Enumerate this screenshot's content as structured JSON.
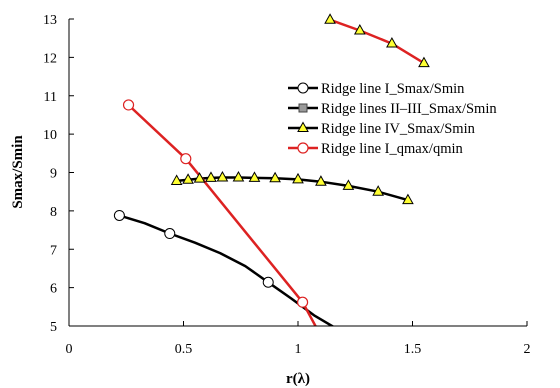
{
  "chart_data": {
    "type": "line",
    "xlabel": "r(λ)",
    "ylabel": "Smax/Smin",
    "xlim": [
      0,
      2
    ],
    "ylim": [
      5,
      13
    ],
    "xticks": [
      "0",
      "0.5",
      "1",
      "1.5",
      "2"
    ],
    "yticks": [
      "5",
      "6",
      "7",
      "8",
      "9",
      "10",
      "11",
      "12",
      "13"
    ],
    "grid": false,
    "legend_position": "right",
    "series": [
      {
        "name": "Ridge line I_Smax/Smin",
        "color": "#000000",
        "marker": "circle-open",
        "marker_points": [
          [
            0.22,
            7.88
          ],
          [
            0.44,
            7.41
          ],
          [
            0.87,
            6.14
          ]
        ],
        "curve": [
          [
            0.22,
            7.88
          ],
          [
            0.33,
            7.68
          ],
          [
            0.44,
            7.41
          ],
          [
            0.55,
            7.17
          ],
          [
            0.66,
            6.9
          ],
          [
            0.77,
            6.56
          ],
          [
            0.87,
            6.14
          ],
          [
            0.97,
            5.72
          ],
          [
            1.07,
            5.28
          ],
          [
            1.16,
            4.96
          ]
        ]
      },
      {
        "name": "Ridge lines II–III_Smax/Smin",
        "color": "#000000",
        "marker": "square-gray",
        "marker_points": [],
        "curve": []
      },
      {
        "name": "Ridge line IV_Smax/Smin",
        "color": "#000000",
        "marker": "triangle-yellow",
        "marker_points": [
          [
            0.47,
            8.78
          ],
          [
            0.52,
            8.81
          ],
          [
            0.57,
            8.84
          ],
          [
            0.62,
            8.86
          ],
          [
            0.67,
            8.87
          ],
          [
            0.74,
            8.87
          ],
          [
            0.81,
            8.86
          ],
          [
            0.9,
            8.85
          ],
          [
            1.0,
            8.82
          ],
          [
            1.1,
            8.76
          ],
          [
            1.22,
            8.65
          ],
          [
            1.35,
            8.5
          ],
          [
            1.48,
            8.28
          ]
        ],
        "curve": [
          [
            0.47,
            8.78
          ],
          [
            0.52,
            8.81
          ],
          [
            0.57,
            8.84
          ],
          [
            0.62,
            8.86
          ],
          [
            0.67,
            8.87
          ],
          [
            0.74,
            8.87
          ],
          [
            0.81,
            8.86
          ],
          [
            0.9,
            8.85
          ],
          [
            1.0,
            8.82
          ],
          [
            1.1,
            8.76
          ],
          [
            1.22,
            8.65
          ],
          [
            1.35,
            8.5
          ],
          [
            1.48,
            8.28
          ]
        ]
      },
      {
        "name": "Ridge line I_qmax/qmin",
        "color": "#dd2222",
        "marker": "circle-open-red",
        "marker_points": [
          [
            0.26,
            10.76
          ],
          [
            0.51,
            9.36
          ],
          [
            1.02,
            5.62
          ]
        ],
        "curve": [
          [
            0.26,
            10.76
          ],
          [
            0.51,
            9.36
          ],
          [
            1.02,
            5.62
          ],
          [
            1.08,
            4.96
          ]
        ]
      },
      {
        "name": "",
        "color": "#dd2222",
        "marker": "triangle-yellow",
        "marker_points": [
          [
            1.14,
            12.98
          ],
          [
            1.27,
            12.7
          ],
          [
            1.41,
            12.36
          ],
          [
            1.55,
            11.85
          ]
        ],
        "curve": [
          [
            1.14,
            12.98
          ],
          [
            1.27,
            12.7
          ],
          [
            1.41,
            12.36
          ],
          [
            1.55,
            11.85
          ]
        ]
      }
    ]
  }
}
